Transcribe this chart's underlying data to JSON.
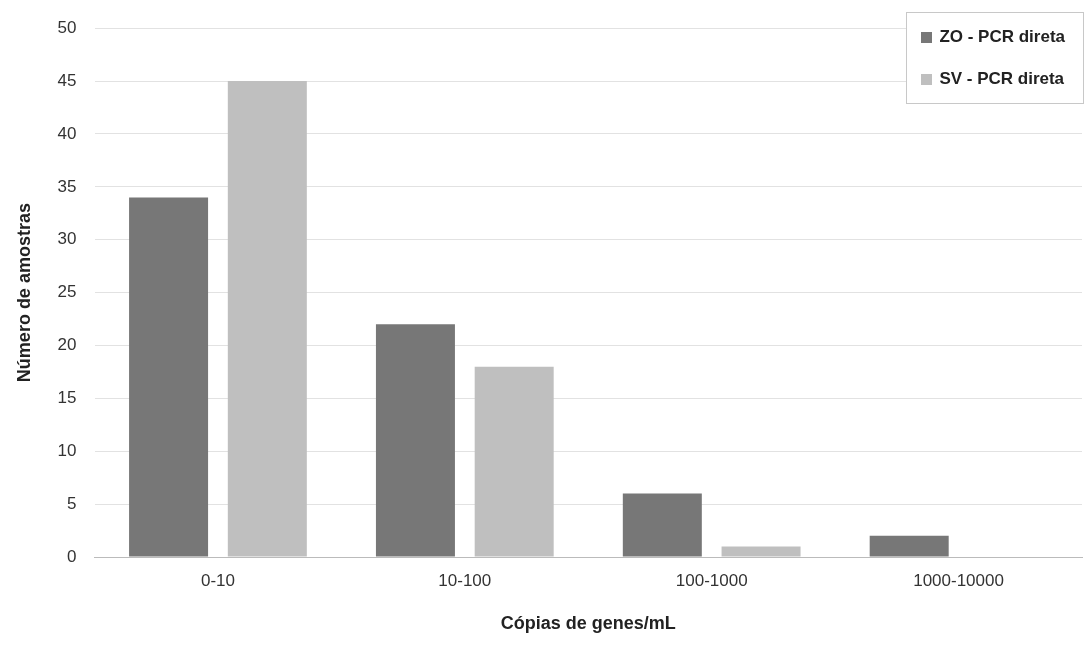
{
  "chart_data": {
    "type": "bar",
    "xlabel": "Cópias de genes/mL",
    "ylabel": "Número de amostras",
    "categories": [
      "0-10",
      "10-100",
      "100-1000",
      "1000-10000"
    ],
    "series": [
      {
        "name": "ZO - PCR direta",
        "color": "#777777",
        "values": [
          34,
          22,
          6,
          2
        ]
      },
      {
        "name": "SV - PCR direta",
        "color": "#bfbfbf",
        "values": [
          45,
          18,
          1,
          0
        ]
      }
    ],
    "ylim": [
      0,
      50
    ],
    "yticks": [
      0,
      5,
      10,
      15,
      20,
      25,
      30,
      35,
      40,
      45,
      50
    ],
    "grid": "y",
    "legend": "top right"
  }
}
